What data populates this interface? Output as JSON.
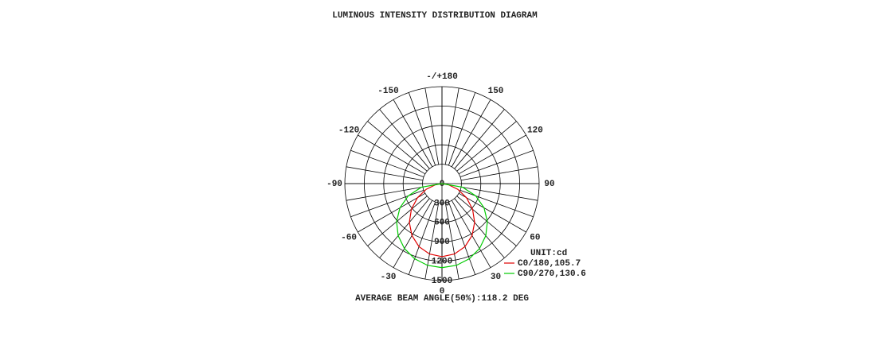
{
  "chart_data": {
    "type": "polar",
    "title": "LUMINOUS INTENSITY DISTRIBUTION DIAGRAM",
    "footer": "AVERAGE BEAM ANGLE(50%):118.2 DEG",
    "unit_label": "UNIT:cd",
    "x": [
      -90,
      -80,
      -70,
      -60,
      -50,
      -40,
      -30,
      -20,
      -10,
      0,
      10,
      20,
      30,
      40,
      50,
      60,
      70,
      80,
      90
    ],
    "series": [
      {
        "name": "C0/180,105.7",
        "color": "#e00000",
        "values": [
          0,
          103,
          260,
          437,
          617,
          784,
          928,
          1038,
          1106,
          1130,
          1106,
          1038,
          928,
          784,
          617,
          437,
          260,
          103,
          0
        ]
      },
      {
        "name": "C90/270,130.6",
        "color": "#00cc00",
        "values": [
          0,
          324,
          555,
          750,
          915,
          1052,
          1160,
          1237,
          1284,
          1300,
          1284,
          1237,
          1160,
          1052,
          915,
          750,
          555,
          324,
          0
        ]
      }
    ],
    "ylim": [
      0,
      1500
    ],
    "yticks": [
      0,
      300,
      600,
      900,
      1200,
      1500
    ],
    "xticks": [
      0,
      30,
      60,
      90,
      120,
      150,
      {
        "value": 180,
        "label": "-/+180"
      },
      -150,
      -120,
      -90,
      -60,
      -30
    ],
    "legend": "lower-right"
  }
}
